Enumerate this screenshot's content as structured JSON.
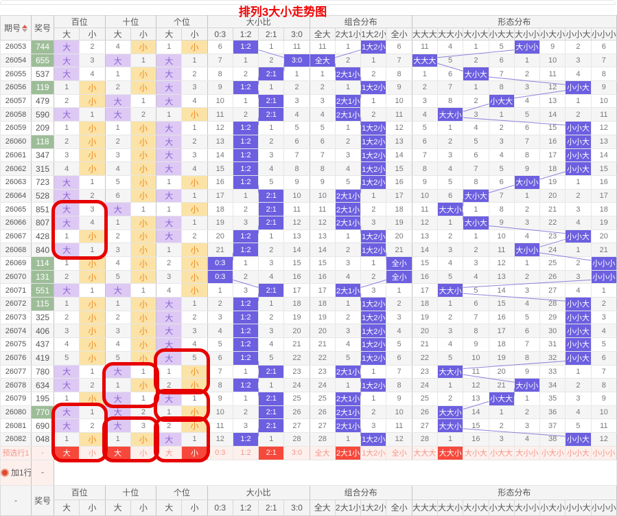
{
  "title": "排列3大小走势图",
  "header": {
    "period": "期号",
    "number": "奖号",
    "footer_first": "-",
    "groups": [
      {
        "label": "百位",
        "cols": [
          "大",
          "小"
        ]
      },
      {
        "label": "十位",
        "cols": [
          "大",
          "小"
        ]
      },
      {
        "label": "个位",
        "cols": [
          "大",
          "小"
        ]
      },
      {
        "label": "大小比",
        "cols": [
          "0:3",
          "1:2",
          "2:1",
          "3:0"
        ]
      },
      {
        "label": "组合分布",
        "cols": [
          "全大",
          "2大1小",
          "1大2小",
          "全小"
        ]
      },
      {
        "label": "形态分布",
        "cols": [
          "大大大",
          "大大小",
          "大小大",
          "小大大",
          "大小小",
          "小大小",
          "小小大",
          "小小小"
        ]
      }
    ]
  },
  "rows": [
    {
      "period": "26053",
      "num": "744",
      "green": true,
      "cells": [
        "大",
        2,
        4,
        "小",
        1,
        "小",
        6,
        "1:2",
        1,
        11,
        11,
        1,
        "1大2小",
        6,
        11,
        4,
        1,
        5,
        "大小小",
        9,
        2,
        6
      ]
    },
    {
      "period": "26054",
      "num": "655",
      "green": true,
      "cells": [
        "大",
        3,
        "大",
        1,
        "大",
        1,
        7,
        1,
        2,
        "3:0",
        "全大",
        2,
        1,
        7,
        "大大大",
        5,
        2,
        6,
        1,
        10,
        3,
        7
      ]
    },
    {
      "period": "26055",
      "num": "537",
      "green": false,
      "cells": [
        "大",
        4,
        1,
        "小",
        "大",
        2,
        8,
        2,
        "2:1",
        1,
        1,
        "2大1小",
        2,
        8,
        1,
        6,
        "大小大",
        7,
        2,
        11,
        4,
        8
      ]
    },
    {
      "period": "26056",
      "num": "119",
      "green": true,
      "cells": [
        1,
        "小",
        2,
        "小",
        "大",
        3,
        9,
        "1:2",
        1,
        2,
        2,
        1,
        "1大2小",
        9,
        2,
        7,
        1,
        8,
        3,
        12,
        "小小大",
        9
      ]
    },
    {
      "period": "26057",
      "num": "479",
      "green": false,
      "cells": [
        2,
        "小",
        "大",
        1,
        "大",
        4,
        10,
        1,
        "2:1",
        3,
        3,
        "2大1小",
        1,
        10,
        3,
        8,
        2,
        "小大大",
        4,
        13,
        1,
        10
      ]
    },
    {
      "period": "26058",
      "num": "590",
      "green": false,
      "cells": [
        "大",
        1,
        "大",
        2,
        1,
        "小",
        11,
        2,
        "2:1",
        4,
        4,
        "2大1小",
        2,
        11,
        4,
        "大大小",
        3,
        1,
        5,
        14,
        2,
        11
      ]
    },
    {
      "period": "26059",
      "num": "209",
      "green": false,
      "cells": [
        1,
        "小",
        1,
        "小",
        "大",
        1,
        12,
        "1:2",
        1,
        5,
        5,
        1,
        "1大2小",
        12,
        5,
        1,
        4,
        2,
        6,
        15,
        "小小大",
        12
      ]
    },
    {
      "period": "26060",
      "num": "118",
      "green": true,
      "cells": [
        2,
        "小",
        2,
        "小",
        "大",
        2,
        13,
        "1:2",
        2,
        6,
        6,
        2,
        "1大2小",
        13,
        6,
        2,
        5,
        3,
        7,
        16,
        "小小大",
        13
      ]
    },
    {
      "period": "26061",
      "num": "347",
      "green": false,
      "cells": [
        3,
        "小",
        3,
        "小",
        "大",
        3,
        14,
        "1:2",
        3,
        7,
        7,
        3,
        "1大2小",
        14,
        7,
        3,
        6,
        4,
        8,
        17,
        "小小大",
        14
      ]
    },
    {
      "period": "26062",
      "num": "315",
      "green": false,
      "cells": [
        4,
        "小",
        4,
        "小",
        "大",
        4,
        15,
        "1:2",
        4,
        8,
        8,
        4,
        "1大2小",
        15,
        8,
        4,
        7,
        5,
        9,
        18,
        "小小大",
        15
      ]
    },
    {
      "period": "26063",
      "num": "723",
      "green": false,
      "cells": [
        "大",
        1,
        5,
        "小",
        1,
        "小",
        16,
        "1:2",
        5,
        9,
        9,
        5,
        "1大2小",
        16,
        9,
        5,
        8,
        6,
        "大小小",
        19,
        1,
        16
      ]
    },
    {
      "period": "26064",
      "num": "528",
      "green": false,
      "cells": [
        "大",
        2,
        6,
        "小",
        "大",
        1,
        17,
        1,
        "2:1",
        10,
        10,
        "2大1小",
        1,
        17,
        10,
        6,
        "大小大",
        7,
        1,
        20,
        2,
        17
      ]
    },
    {
      "period": "26065",
      "num": "851",
      "green": false,
      "cells": [
        "大",
        3,
        "大",
        1,
        1,
        "小",
        18,
        2,
        "2:1",
        11,
        11,
        "2大1小",
        2,
        18,
        11,
        "大大小",
        1,
        8,
        2,
        21,
        3,
        18
      ]
    },
    {
      "period": "26066",
      "num": "807",
      "green": false,
      "cells": [
        "大",
        4,
        1,
        "小",
        "大",
        1,
        19,
        3,
        "2:1",
        12,
        12,
        "2大1小",
        3,
        19,
        12,
        1,
        "大小大",
        9,
        3,
        22,
        4,
        19
      ]
    },
    {
      "period": "26067",
      "num": "428",
      "green": false,
      "cells": [
        1,
        "小",
        2,
        "小",
        "大",
        2,
        20,
        "1:2",
        1,
        13,
        13,
        1,
        "1大2小",
        20,
        13,
        2,
        1,
        10,
        4,
        23,
        "小小大",
        20
      ]
    },
    {
      "period": "26068",
      "num": "840",
      "green": false,
      "cells": [
        "大",
        1,
        3,
        "小",
        1,
        "小",
        21,
        "1:2",
        2,
        14,
        14,
        2,
        "1大2小",
        21,
        14,
        3,
        2,
        11,
        "大小小",
        24,
        1,
        21
      ]
    },
    {
      "period": "26069",
      "num": "114",
      "green": true,
      "cells": [
        1,
        "小",
        4,
        "小",
        2,
        "小",
        "0:3",
        1,
        3,
        15,
        15,
        3,
        1,
        "全小",
        15,
        4,
        3,
        12,
        1,
        25,
        2,
        "小小小"
      ]
    },
    {
      "period": "26070",
      "num": "131",
      "green": true,
      "cells": [
        2,
        "小",
        5,
        "小",
        3,
        "小",
        "0:3",
        2,
        4,
        16,
        16,
        4,
        2,
        "全小",
        16,
        5,
        4,
        13,
        2,
        26,
        3,
        "小小小"
      ]
    },
    {
      "period": "26071",
      "num": "551",
      "green": true,
      "cells": [
        "大",
        1,
        "大",
        1,
        4,
        "小",
        1,
        3,
        "2:1",
        17,
        17,
        "2大1小",
        3,
        1,
        17,
        "大大小",
        5,
        14,
        3,
        27,
        4,
        1
      ]
    },
    {
      "period": "26072",
      "num": "115",
      "green": true,
      "cells": [
        1,
        "小",
        1,
        "小",
        "大",
        1,
        2,
        "1:2",
        1,
        18,
        18,
        1,
        "1大2小",
        2,
        18,
        1,
        6,
        15,
        4,
        28,
        "小小大",
        2
      ]
    },
    {
      "period": "26073",
      "num": "325",
      "green": false,
      "cells": [
        2,
        "小",
        2,
        "小",
        "大",
        2,
        3,
        "1:2",
        2,
        19,
        19,
        2,
        "1大2小",
        3,
        19,
        2,
        7,
        16,
        5,
        29,
        "小小大",
        3
      ]
    },
    {
      "period": "26074",
      "num": "406",
      "green": false,
      "cells": [
        3,
        "小",
        3,
        "小",
        "大",
        3,
        4,
        "1:2",
        3,
        20,
        20,
        3,
        "1大2小",
        4,
        20,
        3,
        8,
        17,
        6,
        30,
        "小小大",
        4
      ]
    },
    {
      "period": "26075",
      "num": "437",
      "green": false,
      "cells": [
        4,
        "小",
        4,
        "小",
        "大",
        4,
        5,
        "1:2",
        4,
        21,
        21,
        4,
        "1大2小",
        5,
        21,
        4,
        9,
        18,
        7,
        31,
        "小小大",
        5
      ]
    },
    {
      "period": "26076",
      "num": "419",
      "green": false,
      "cells": [
        5,
        "小",
        5,
        "小",
        "大",
        5,
        6,
        "1:2",
        5,
        22,
        22,
        5,
        "1大2小",
        6,
        22,
        5,
        10,
        19,
        8,
        32,
        "小小大",
        6
      ]
    },
    {
      "period": "26077",
      "num": "780",
      "green": false,
      "cells": [
        "大",
        1,
        "大",
        1,
        1,
        "小",
        7,
        1,
        "2:1",
        23,
        23,
        "2大1小",
        1,
        7,
        23,
        "大大小",
        11,
        20,
        9,
        33,
        1,
        7
      ]
    },
    {
      "period": "26078",
      "num": "634",
      "green": false,
      "cells": [
        "大",
        2,
        1,
        "小",
        2,
        "小",
        8,
        "1:2",
        1,
        24,
        24,
        1,
        "1大2小",
        8,
        24,
        1,
        12,
        21,
        "大小小",
        34,
        2,
        8
      ]
    },
    {
      "period": "26079",
      "num": "195",
      "green": false,
      "cells": [
        1,
        "小",
        "大",
        1,
        "大",
        1,
        9,
        1,
        "2:1",
        25,
        25,
        "2大1小",
        1,
        9,
        25,
        2,
        13,
        "小大大",
        1,
        35,
        3,
        9
      ]
    },
    {
      "period": "26080",
      "num": "770",
      "green": true,
      "cells": [
        "大",
        1,
        "大",
        2,
        1,
        "小",
        10,
        2,
        "2:1",
        26,
        26,
        "2大1小",
        2,
        10,
        26,
        "大大小",
        14,
        1,
        2,
        36,
        4,
        10
      ]
    },
    {
      "period": "26081",
      "num": "690",
      "green": false,
      "cells": [
        "大",
        2,
        "大",
        3,
        2,
        "小",
        11,
        3,
        "2:1",
        27,
        27,
        "2大1小",
        3,
        11,
        27,
        "大大小",
        15,
        2,
        3,
        37,
        5,
        11
      ]
    },
    {
      "period": "26082",
      "num": "048",
      "green": false,
      "cells": [
        1,
        "小",
        1,
        "小",
        "大",
        1,
        12,
        "1:2",
        1,
        28,
        28,
        1,
        "1大2小",
        12,
        28,
        1,
        16,
        3,
        4,
        38,
        "小小大",
        12
      ]
    }
  ],
  "preselect": {
    "label": "预选行1",
    "num": "-",
    "selected": [
      0,
      2,
      5,
      8,
      11,
      15
    ]
  },
  "addrow": {
    "label": "加1行",
    "num": "-",
    "icon": "add-circle-icon"
  },
  "annotations": [
    {
      "rows": [
        12,
        15
      ],
      "cols": [
        0,
        1
      ]
    },
    {
      "rows": [
        24,
        26
      ],
      "cols": [
        2,
        3
      ]
    },
    {
      "rows": [
        23,
        25
      ],
      "cols": [
        4,
        5
      ]
    },
    {
      "rows": [
        26,
        27
      ],
      "cols": [
        4,
        5
      ]
    },
    {
      "rows": [
        27,
        30
      ],
      "cols": [
        0,
        1
      ]
    },
    {
      "rows": [
        28,
        30
      ],
      "cols": [
        2,
        3
      ]
    },
    {
      "rows": [
        28,
        30
      ],
      "cols": [
        4,
        5
      ]
    }
  ],
  "colors": {
    "big_bg": "#ddc9f4",
    "big_text": "#8a61d3",
    "small_bg": "#fbe2a6",
    "small_text": "#ef8a1f",
    "blue_bg": "#6c5fe0",
    "blue_text": "#ffffff",
    "green_bg": "#9dbd98",
    "select_red": "#f6493c",
    "pink_bg": "#fdf0ec",
    "pink_text": "#f4968b",
    "annotation_red": "#e60000",
    "line": "#8c82da",
    "title_red": "#f00000"
  }
}
